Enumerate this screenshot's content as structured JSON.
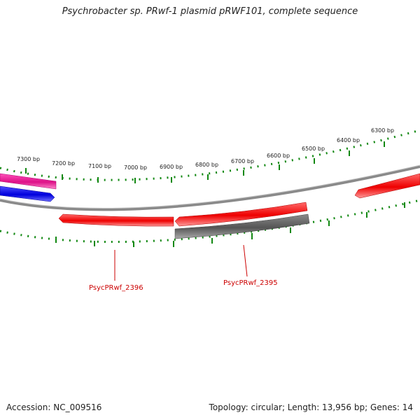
{
  "title": "Psychrobacter sp. PRwf-1 plasmid pRWF101, complete sequence",
  "footer": {
    "accession": "Accession: NC_009516",
    "summary": "Topology: circular; Length: 13,956 bp; Genes: 14"
  },
  "ruler_labels": [
    "7300 bp",
    "7200 bp",
    "7100 bp",
    "7000 bp",
    "6900 bp",
    "6800 bp",
    "6700 bp",
    "6600 bp",
    "6500 bp",
    "6400 bp",
    "6300 bp"
  ],
  "gene_labels": [
    "PsycPRwf_2396",
    "PsycPRwf_2395"
  ],
  "colors": {
    "cds_red": "#ff1a1a",
    "cds_blue": "#1010ee",
    "cds_magenta": "#ee2299",
    "cds_gray": "#666666",
    "backbone": "#8a8a8a",
    "tick_green": "#118811",
    "label_red": "#cc0000"
  }
}
